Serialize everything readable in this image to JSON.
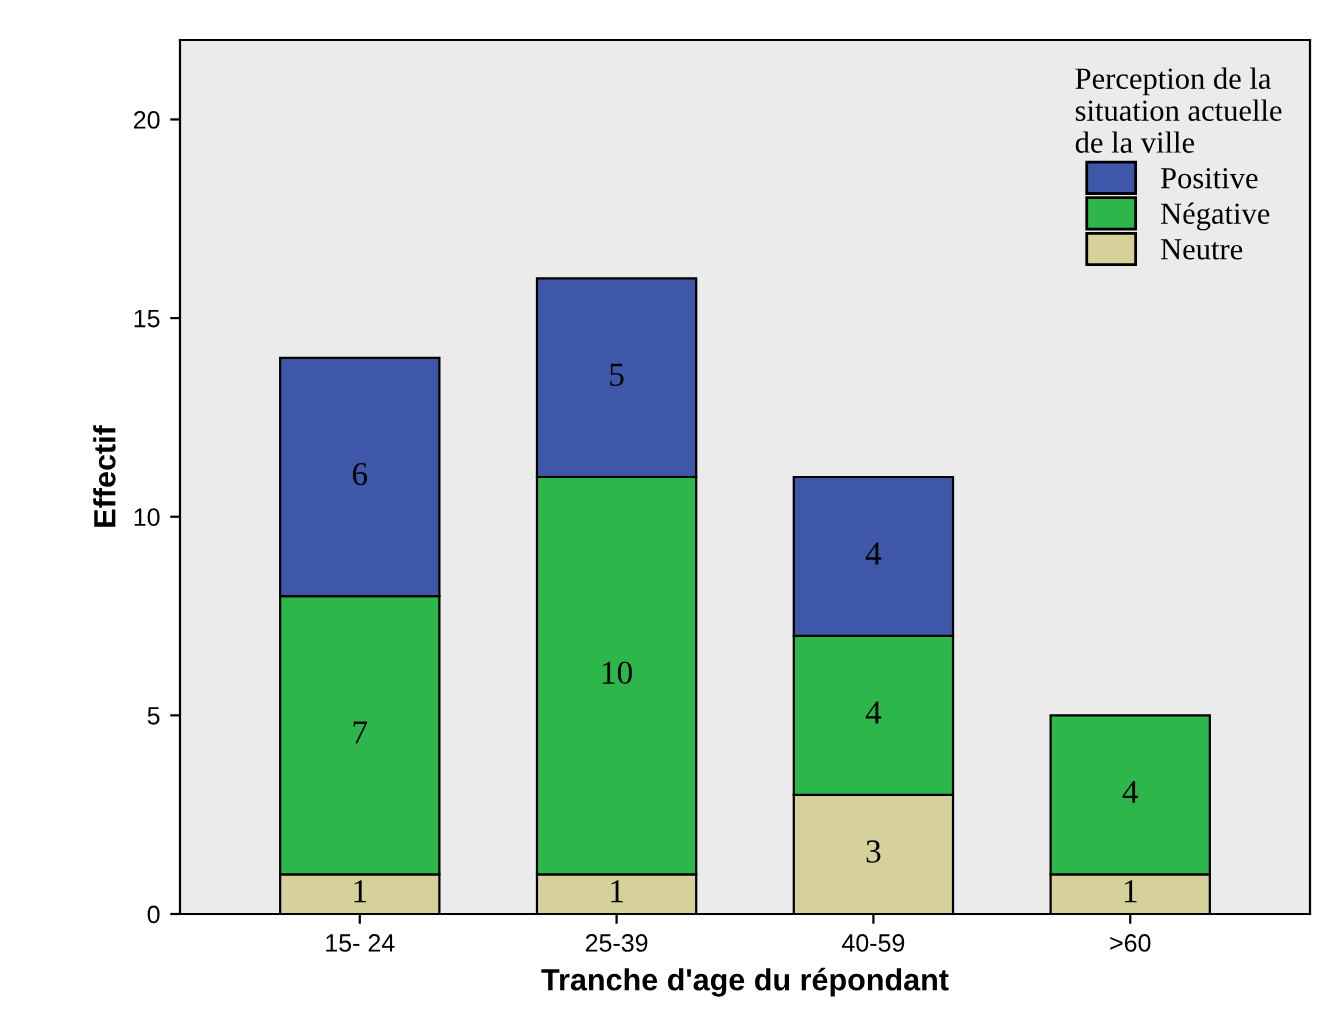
{
  "chart_data": {
    "type": "bar",
    "stacked": true,
    "categories": [
      "15- 24",
      "25-39",
      "40-59",
      ">60"
    ],
    "series": [
      {
        "name": "Neutre",
        "color": "#d6d09a",
        "values": [
          1,
          1,
          3,
          1
        ]
      },
      {
        "name": "Négative",
        "color": "#2db74a",
        "values": [
          7,
          10,
          4,
          4
        ]
      },
      {
        "name": "Positive",
        "color": "#3f57a8",
        "values": [
          6,
          5,
          4,
          null
        ]
      }
    ],
    "xlabel": "Tranche d'age du répondant",
    "ylabel": "Effectif",
    "legend_title": "Perception de la\nsituation actuelle\nde la ville",
    "ylim": [
      0,
      22
    ],
    "yticks": [
      0,
      5,
      10,
      15,
      20
    ],
    "data_labels": true,
    "legend": "top right",
    "grid": false
  }
}
